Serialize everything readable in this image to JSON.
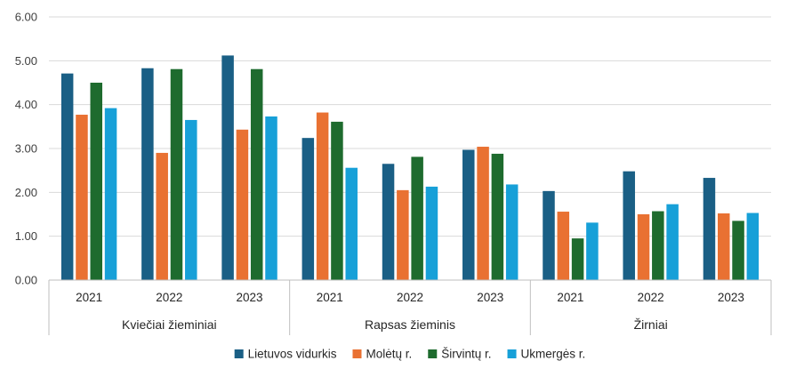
{
  "chart_data": {
    "type": "bar",
    "groups": [
      {
        "label": "Kviečiai žieminiai",
        "categories": [
          "2021",
          "2022",
          "2023"
        ]
      },
      {
        "label": "Rapsas žieminis",
        "categories": [
          "2021",
          "2022",
          "2023"
        ]
      },
      {
        "label": "Žirniai",
        "categories": [
          "2021",
          "2022",
          "2023"
        ]
      }
    ],
    "series": [
      {
        "name": "Lietuvos vidurkis",
        "color": "#1a5f85",
        "values": [
          4.71,
          4.83,
          5.12,
          3.24,
          2.65,
          2.97,
          2.03,
          2.48,
          2.33
        ]
      },
      {
        "name": "Molėtų r.",
        "color": "#e97132",
        "values": [
          3.77,
          2.9,
          3.43,
          3.82,
          2.05,
          3.04,
          1.56,
          1.5,
          1.52
        ]
      },
      {
        "name": "Širvintų r.",
        "color": "#1e6b2e",
        "values": [
          4.5,
          4.81,
          4.81,
          3.61,
          2.81,
          2.88,
          0.95,
          1.57,
          1.35
        ]
      },
      {
        "name": "Ukmergės r.",
        "color": "#17a0d8",
        "values": [
          3.92,
          3.65,
          3.73,
          2.56,
          2.13,
          2.18,
          1.31,
          1.73,
          1.53
        ]
      }
    ],
    "y_ticks": [
      "0.00",
      "1.00",
      "2.00",
      "3.00",
      "4.00",
      "5.00",
      "6.00"
    ],
    "ylim": [
      0,
      6
    ],
    "grid": true,
    "legend_position": "bottom"
  }
}
